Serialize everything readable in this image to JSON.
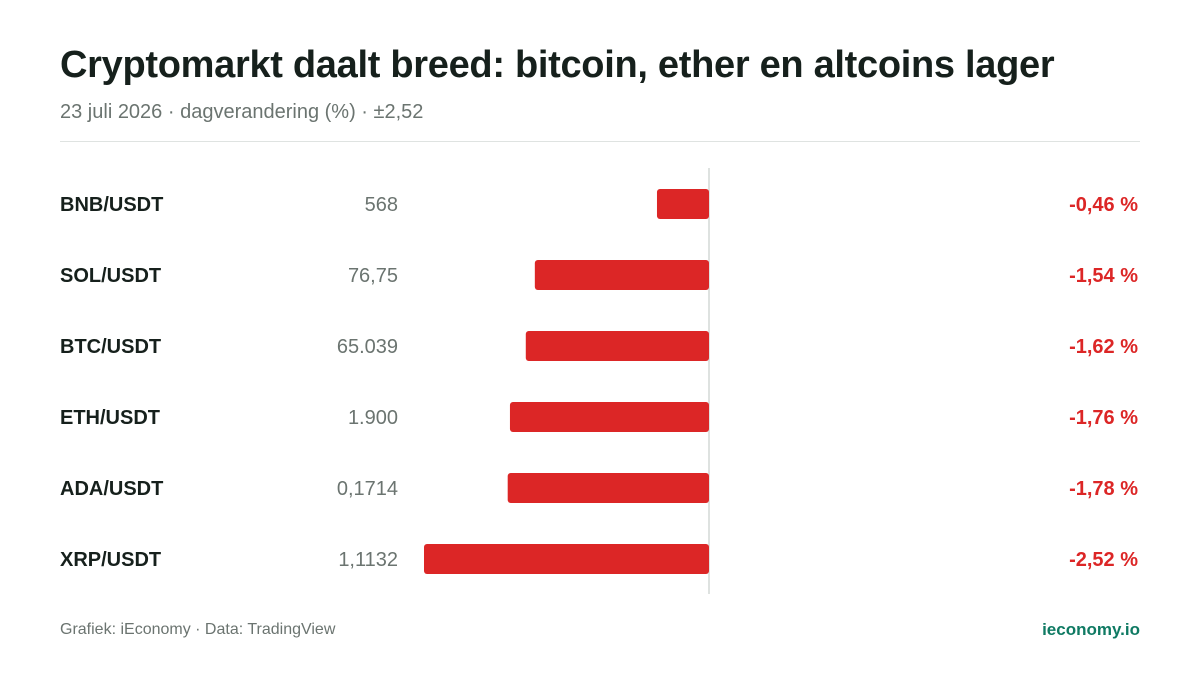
{
  "header": {
    "title": "Cryptomarkt daalt breed: bitcoin, ether en altcoins lager",
    "subtitle": "23 juli 2026 · dagverandering (%) · ±2,52"
  },
  "footer": {
    "source": "Grafiek: iEconomy · Data: TradingView",
    "brand": "ieconomy.io"
  },
  "colors": {
    "negative": "#dc2626",
    "label": "#16201c",
    "price": "#6b7470",
    "axis": "#d4d8d6"
  },
  "chart_data": {
    "type": "bar",
    "orientation": "horizontal",
    "categories": [
      "BNB/USDT",
      "SOL/USDT",
      "BTC/USDT",
      "ETH/USDT",
      "ADA/USDT",
      "XRP/USDT"
    ],
    "prices": [
      "568",
      "76,75",
      "65.039",
      "1.900",
      "0,1714",
      "1,1132"
    ],
    "values": [
      -0.46,
      -1.54,
      -1.62,
      -1.76,
      -1.78,
      -2.52
    ],
    "value_labels": [
      "-0,46 %",
      "-1,54 %",
      "-1,62 %",
      "-1,76 %",
      "-1,78 %",
      "-2,52 %"
    ],
    "xlim": [
      -2.52,
      2.52
    ],
    "grid": false
  }
}
